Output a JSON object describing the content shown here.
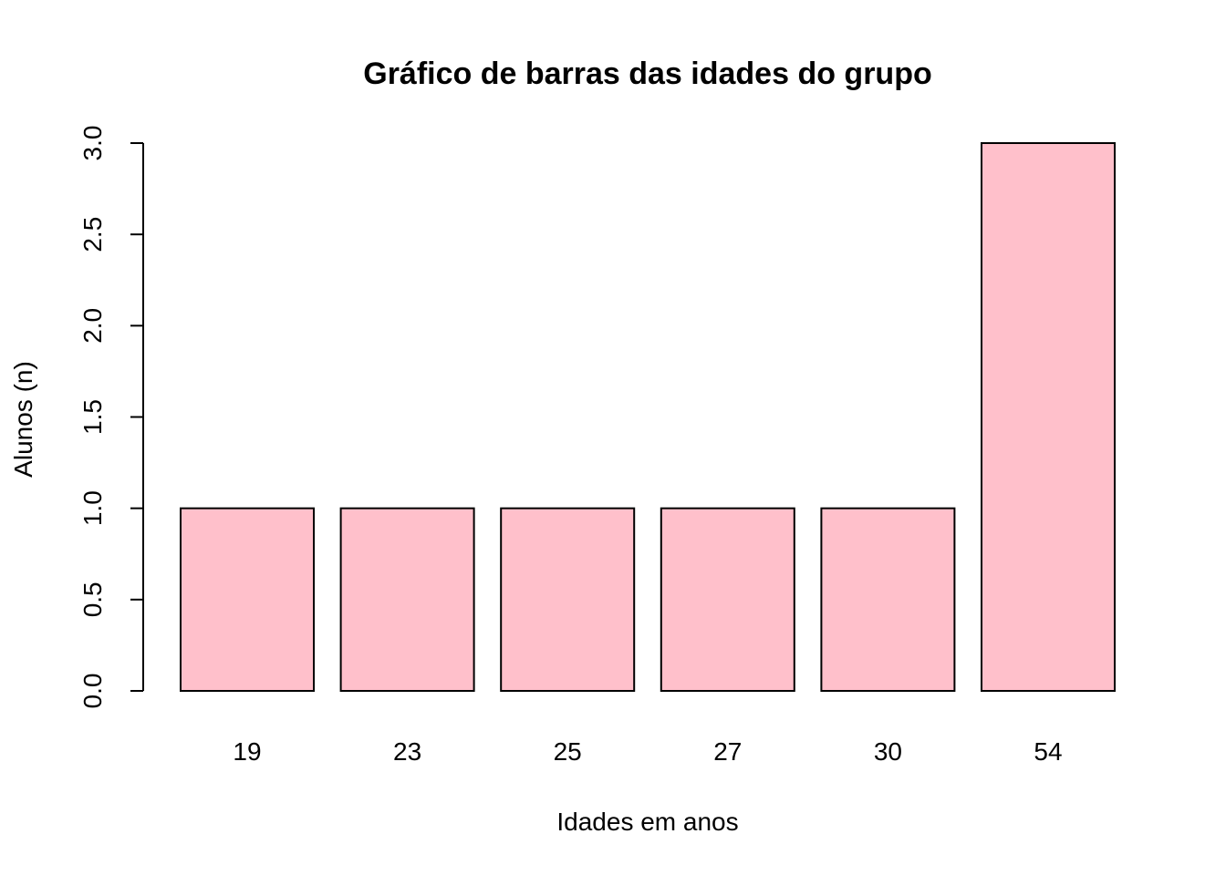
{
  "chart_data": {
    "type": "bar",
    "title": "Gráfico de barras das idades do grupo",
    "xlabel": "Idades em anos",
    "ylabel": "Alunos (n)",
    "categories": [
      "19",
      "23",
      "25",
      "27",
      "30",
      "54"
    ],
    "values": [
      1,
      1,
      1,
      1,
      1,
      3
    ],
    "ylim": [
      0,
      3
    ],
    "yticks": [
      "0.0",
      "0.5",
      "1.0",
      "1.5",
      "2.0",
      "2.5",
      "3.0"
    ],
    "bar_color": "#FFC0CB",
    "grid": false,
    "legend": "none"
  }
}
